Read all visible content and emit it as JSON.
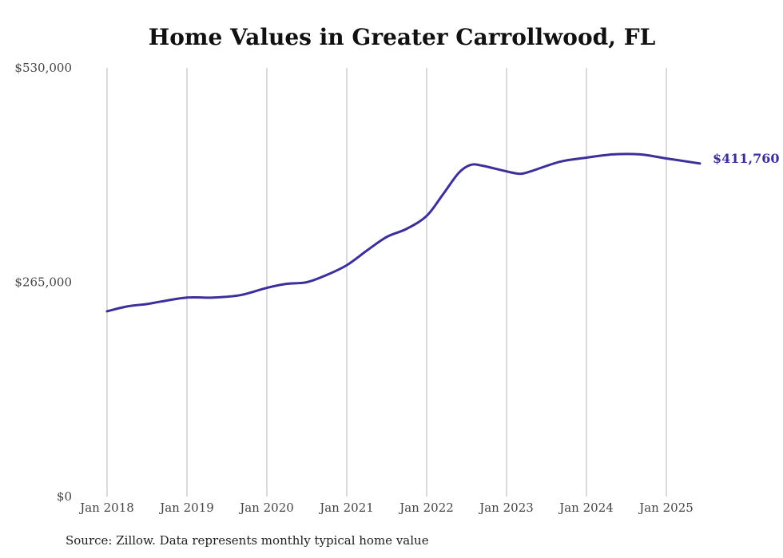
{
  "chart_data": {
    "type": "line",
    "title": "Home Values in Greater Carrollwood, FL",
    "xlabel": "",
    "ylabel": "",
    "ylim": [
      0,
      530000
    ],
    "yticks": [
      0,
      265000,
      530000
    ],
    "ytick_labels": [
      "$0",
      "$265,000",
      "$530,000"
    ],
    "xticks": [
      2018,
      2019,
      2020,
      2021,
      2022,
      2023,
      2024,
      2025
    ],
    "xtick_labels": [
      "Jan 2018",
      "Jan 2019",
      "Jan 2020",
      "Jan 2021",
      "Jan 2022",
      "Jan 2023",
      "Jan 2024",
      "Jan 2025"
    ],
    "grid": "vertical",
    "line_color": "#3b2f9b",
    "series": [
      {
        "name": "Typical home value",
        "x": [
          2018.0,
          2018.25,
          2018.5,
          2018.67,
          2019.0,
          2019.33,
          2019.67,
          2020.0,
          2020.25,
          2020.5,
          2020.75,
          2021.0,
          2021.25,
          2021.5,
          2021.75,
          2022.0,
          2022.2,
          2022.4,
          2022.55,
          2022.7,
          2023.0,
          2023.17,
          2023.3,
          2023.67,
          2024.0,
          2024.33,
          2024.67,
          2025.0,
          2025.42
        ],
        "values": [
          229000,
          235000,
          238000,
          241000,
          246000,
          246000,
          249000,
          258000,
          263000,
          265000,
          274000,
          286000,
          304000,
          321000,
          331000,
          347000,
          373000,
          400000,
          410000,
          409000,
          402000,
          399000,
          402000,
          414000,
          419000,
          423000,
          423000,
          418000,
          411760
        ]
      }
    ],
    "end_label": "$411,760"
  },
  "source": "Source: Zillow. Data represents monthly typical home value"
}
